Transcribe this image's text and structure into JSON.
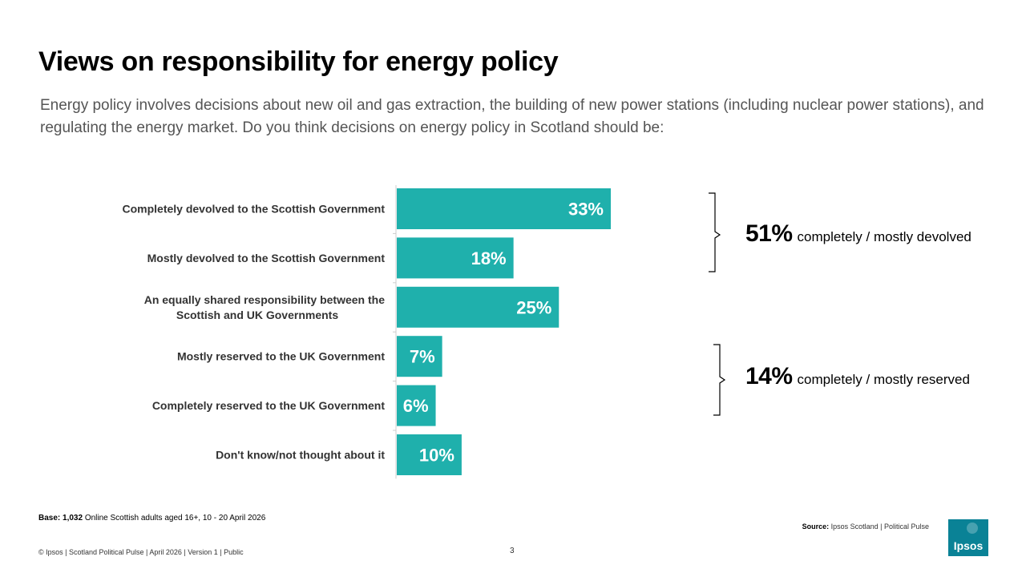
{
  "slide": {
    "title": "Views on responsibility for energy policy",
    "subtitle": "Energy policy involves decisions about new oil and gas extraction, the building of new power stations (including nuclear power stations), and regulating the energy market. Do you think decisions on energy policy in Scotland should be:",
    "page_number": "3"
  },
  "chart_data": {
    "type": "bar",
    "orientation": "horizontal",
    "categories": [
      [
        "Completely devolved to the Scottish Government"
      ],
      [
        "Mostly devolved to the Scottish Government"
      ],
      [
        "An equally shared responsibility between the",
        "Scottish and UK Governments"
      ],
      [
        "Mostly reserved to the UK Government"
      ],
      [
        "Completely reserved to the UK Government"
      ],
      [
        "Don't know/not thought about it"
      ]
    ],
    "values": [
      33,
      18,
      25,
      7,
      6,
      10
    ],
    "value_labels": [
      "33%",
      "18%",
      "25%",
      "7%",
      "6%",
      "10%"
    ],
    "unit": "%",
    "bar_color": "#1fb0ac",
    "xlim": [
      0,
      55
    ],
    "grid": false,
    "legend": "none"
  },
  "summaries": [
    {
      "pct": "51%",
      "text": "completely / mostly devolved"
    },
    {
      "pct": "14%",
      "text": "completely / mostly reserved"
    }
  ],
  "footer": {
    "base_label": "Base: 1,032",
    "base_text": " Online Scottish adults aged 16+, 10 - 20 April 2026",
    "source_label": "Source:",
    "source_text": " Ipsos Scotland | Political Pulse",
    "copyright": "© Ipsos | Scotland Political Pulse | April 2026 | Version 1 | Public"
  },
  "brand": {
    "logo_text": "Ipsos",
    "logo_color": "#009d9c"
  }
}
